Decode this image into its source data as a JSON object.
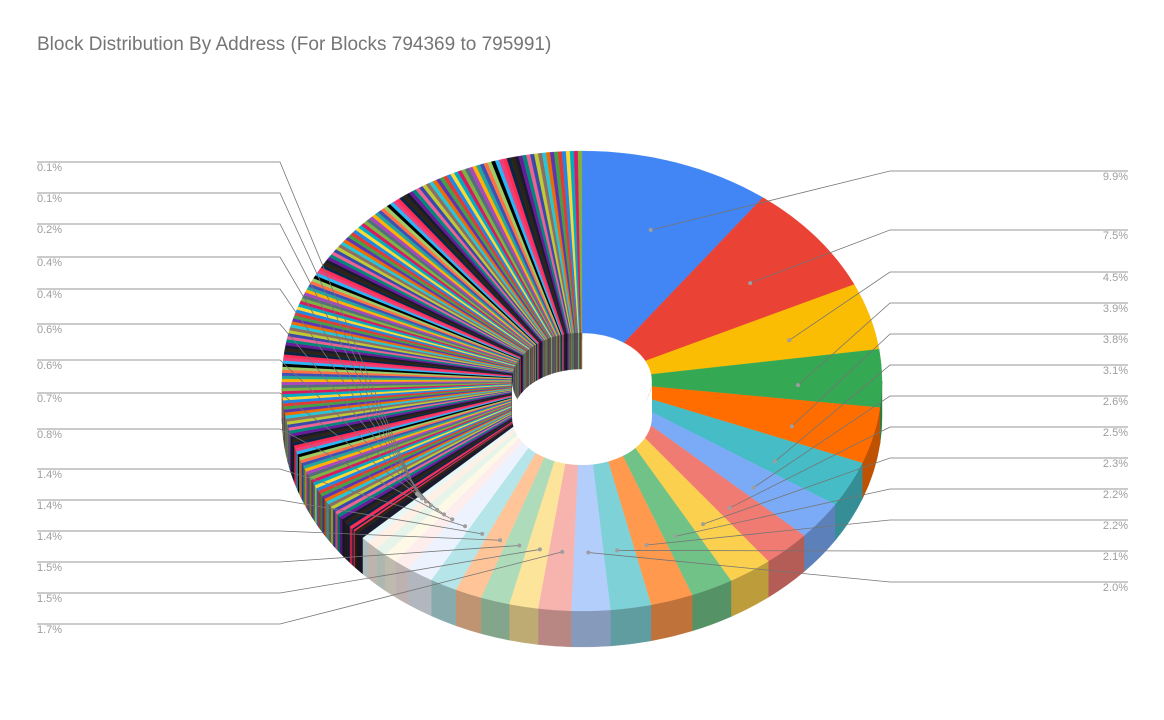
{
  "chart_data": {
    "type": "pie",
    "style": "3d-doughnut",
    "title": "Block Distribution By Address (For Blocks 794369 to 795991)",
    "legend": "none",
    "labeled_slices": [
      {
        "label": "9.9%",
        "value": 9.9,
        "color": "#4285f4"
      },
      {
        "label": "7.5%",
        "value": 7.5,
        "color": "#ea4335"
      },
      {
        "label": "4.5%",
        "value": 4.5,
        "color": "#fbbc04"
      },
      {
        "label": "3.9%",
        "value": 3.9,
        "color": "#34a853"
      },
      {
        "label": "3.8%",
        "value": 3.8,
        "color": "#ff6d01"
      },
      {
        "label": "3.1%",
        "value": 3.1,
        "color": "#46bdc6"
      },
      {
        "label": "2.6%",
        "value": 2.6,
        "color": "#7baaf7"
      },
      {
        "label": "2.5%",
        "value": 2.5,
        "color": "#f07b72"
      },
      {
        "label": "2.3%",
        "value": 2.3,
        "color": "#fcd04f"
      },
      {
        "label": "2.2%",
        "value": 2.2,
        "color": "#71c287"
      },
      {
        "label": "2.2%",
        "value": 2.2,
        "color": "#ff994d"
      },
      {
        "label": "2.1%",
        "value": 2.1,
        "color": "#7ed1d7"
      },
      {
        "label": "2.0%",
        "value": 2.0,
        "color": "#b3cefb"
      },
      {
        "label": "1.7%",
        "value": 1.7,
        "color": "#f7b4ae"
      },
      {
        "label": "1.5%",
        "value": 1.5,
        "color": "#fde49b"
      },
      {
        "label": "1.5%",
        "value": 1.5,
        "color": "#aedcba"
      },
      {
        "label": "1.4%",
        "value": 1.4,
        "color": "#ffc599"
      },
      {
        "label": "1.4%",
        "value": 1.4,
        "color": "#b5e5e8"
      },
      {
        "label": "1.4%",
        "value": 1.4,
        "color": "#ecf3fe"
      },
      {
        "label": "0.8%",
        "value": 0.8,
        "color": "#fdedec"
      },
      {
        "label": "0.7%",
        "value": 0.7,
        "color": "#fef8e6"
      },
      {
        "label": "0.6%",
        "value": 0.6,
        "color": "#e6f4ea"
      },
      {
        "label": "0.6%",
        "value": 0.6,
        "color": "#fff0e6"
      },
      {
        "label": "0.4%",
        "value": 0.4,
        "color": "#e7f7f8"
      },
      {
        "label": "0.4%",
        "value": 0.4,
        "color": "#1a1a2e"
      },
      {
        "label": "0.2%",
        "value": 0.2,
        "color": "#2d2416"
      },
      {
        "label": "0.1%",
        "value": 0.1,
        "color": "#ff2d55"
      },
      {
        "label": "0.1%",
        "value": 0.1,
        "color": "#0b2545"
      }
    ],
    "unlabeled_small_slices": {
      "approx_count": 170,
      "approx_total_percent": 34.7,
      "palette": [
        "#ff2d55",
        "#0b2545",
        "#2d2416",
        "#1a1a2e",
        "#6a1b9a",
        "#00897b",
        "#f06292",
        "#3949ab",
        "#c0ca33",
        "#8d6e63",
        "#26c6da",
        "#ef6c00",
        "#5e35b1",
        "#43a047",
        "#e53935",
        "#1e88e5",
        "#fdd835",
        "#00acc1",
        "#d81b60",
        "#7cb342",
        "#546e7a",
        "#ab47bc",
        "#ffb300",
        "#26a69a",
        "#3f51b5",
        "#ff7043",
        "#9ccc65",
        "#000000",
        "#29b6f6",
        "#ec407a"
      ]
    }
  }
}
